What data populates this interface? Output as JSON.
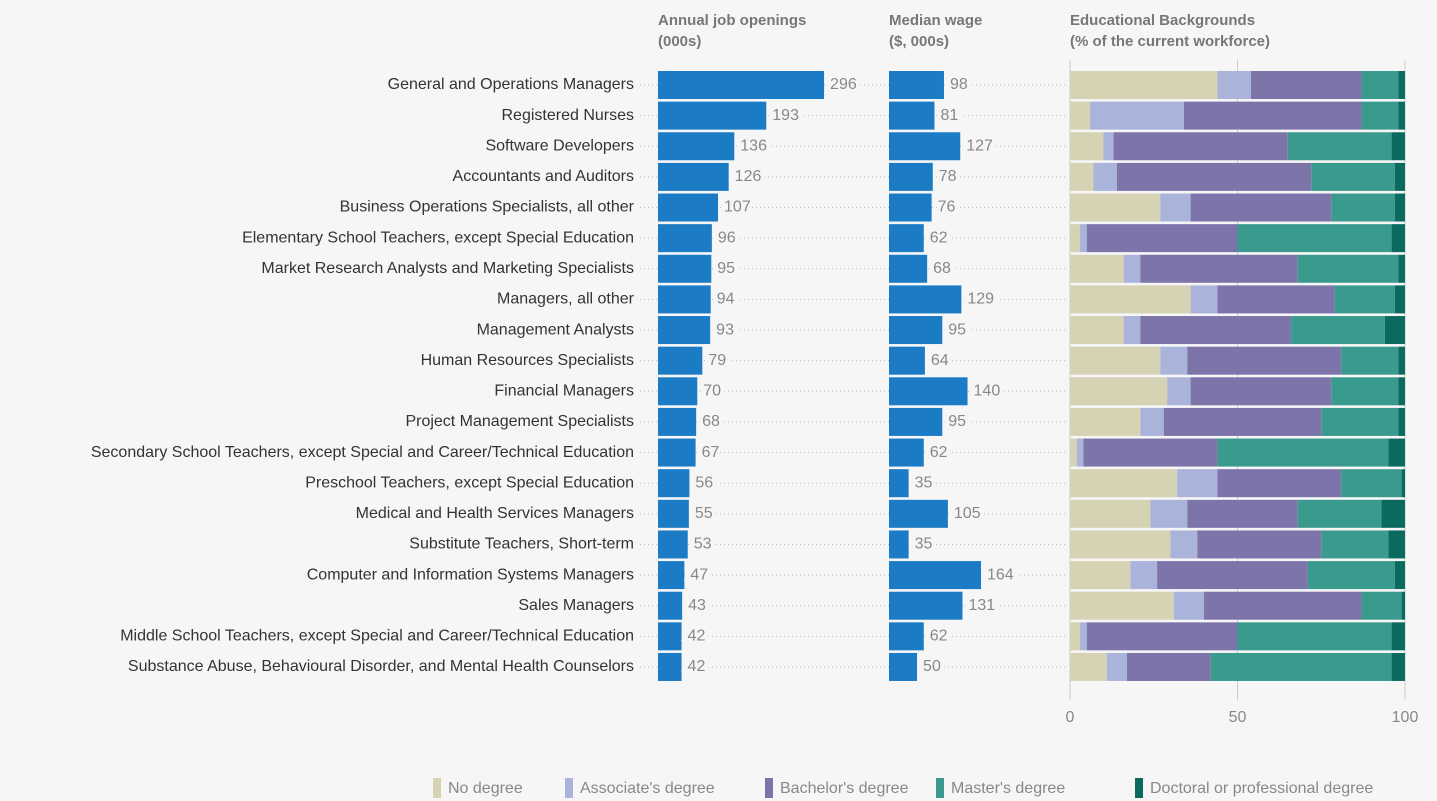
{
  "chart_data": [
    {
      "type": "bar",
      "title": [
        "Annual job openings",
        "(000s)"
      ],
      "color": "#1b7bc4",
      "categories": [
        "General and Operations Managers",
        "Registered Nurses",
        "Software Developers",
        "Accountants and Auditors",
        "Business Operations Specialists, all other",
        "Elementary School Teachers, except Special Education",
        "Market Research Analysts and Marketing Specialists",
        "Managers, all other",
        "Management Analysts",
        "Human Resources Specialists",
        "Financial Managers",
        "Project Management Specialists",
        "Secondary School Teachers, except Special and Career/Technical Education",
        "Preschool Teachers, except Special Education",
        "Medical and Health Services Managers",
        "Substitute Teachers, Short-term",
        "Computer and Information Systems Managers",
        "Sales Managers",
        "Middle School Teachers, except Special and Career/Technical Education",
        "Substance Abuse, Behavioural Disorder, and Mental Health Counselors"
      ],
      "values": [
        296,
        193,
        136,
        126,
        107,
        96,
        95,
        94,
        93,
        79,
        70,
        68,
        67,
        56,
        55,
        53,
        47,
        43,
        42,
        42
      ]
    },
    {
      "type": "bar",
      "title": [
        "Median wage",
        "($, 000s)"
      ],
      "color": "#1b7bc4",
      "values": [
        98,
        81,
        127,
        78,
        76,
        62,
        68,
        129,
        95,
        64,
        140,
        95,
        62,
        35,
        105,
        35,
        164,
        131,
        62,
        50
      ]
    },
    {
      "type": "stacked_bar",
      "title": [
        "Educational Backgrounds",
        "(% of the current workforce)"
      ],
      "xlim": [
        0,
        100
      ],
      "xticks": [
        0,
        50,
        100
      ],
      "grid": true,
      "legend": "bottom",
      "series": [
        {
          "name": "No degree",
          "color": "#d6d2b4",
          "values": [
            44,
            6,
            10,
            7,
            27,
            3,
            16,
            36,
            16,
            27,
            29,
            21,
            2,
            32,
            24,
            30,
            18,
            31,
            3,
            11
          ]
        },
        {
          "name": "Associate's degree",
          "color": "#aab3da",
          "values": [
            10,
            28,
            3,
            7,
            9,
            2,
            5,
            8,
            5,
            8,
            7,
            7,
            2,
            12,
            11,
            8,
            8,
            9,
            2,
            6
          ]
        },
        {
          "name": "Bachelor's degree",
          "color": "#7d74aa",
          "values": [
            33,
            53,
            52,
            58,
            42,
            45,
            47,
            35,
            45,
            46,
            42,
            47,
            40,
            37,
            33,
            37,
            45,
            47,
            45,
            25
          ]
        },
        {
          "name": "Master's degree",
          "color": "#3a9a8e",
          "values": [
            11,
            11,
            31,
            25,
            19,
            46,
            30,
            18,
            28,
            17,
            20,
            23,
            51,
            18,
            25,
            20,
            26,
            12,
            46,
            54
          ]
        },
        {
          "name": "Doctoral or professional degree",
          "color": "#0a6a5e",
          "values": [
            2,
            2,
            4,
            3,
            3,
            4,
            2,
            3,
            6,
            2,
            2,
            2,
            5,
            1,
            7,
            5,
            3,
            1,
            4,
            4
          ]
        }
      ]
    }
  ]
}
